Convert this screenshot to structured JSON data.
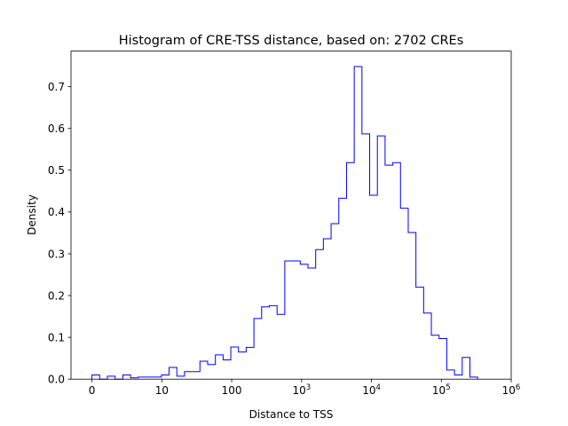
{
  "chart_data": {
    "type": "histogram-step",
    "title": "Histogram of CRE-TSS distance, based on: 2702 CREs",
    "xlabel": "Distance to TSS",
    "ylabel": "Density",
    "xscale": "symlog",
    "linthresh": 10,
    "xlim": [
      -3,
      1000000
    ],
    "ylim": [
      0,
      0.785
    ],
    "grid": false,
    "line_color": "#0000ff",
    "x_ticks": [
      {
        "value": 0,
        "base": "0",
        "exp": ""
      },
      {
        "value": 10,
        "base": "10",
        "exp": ""
      },
      {
        "value": 100,
        "base": "100",
        "exp": ""
      },
      {
        "value": 1000,
        "base": "10",
        "exp": "3"
      },
      {
        "value": 10000,
        "base": "10",
        "exp": "4"
      },
      {
        "value": 100000,
        "base": "10",
        "exp": "5"
      },
      {
        "value": 1000000,
        "base": "10",
        "exp": "6"
      }
    ],
    "y_ticks": [
      {
        "value": 0,
        "label": "0.0"
      },
      {
        "value": 0.1,
        "label": "0.1"
      },
      {
        "value": 0.2,
        "label": "0.2"
      },
      {
        "value": 0.3,
        "label": "0.3"
      },
      {
        "value": 0.4,
        "label": "0.4"
      },
      {
        "value": 0.5,
        "label": "0.5"
      },
      {
        "value": 0.6,
        "label": "0.6"
      },
      {
        "value": 0.7,
        "label": "0.7"
      }
    ],
    "bin_edges": [
      0,
      1.1,
      2.21,
      3.31,
      4.42,
      5.52,
      6.62,
      7.73,
      8.83,
      9.94,
      12.7,
      16.4,
      21.1,
      27.2,
      35.1,
      45.3,
      58.4,
      75.3,
      97.1,
      125,
      161,
      208,
      268,
      346,
      446,
      575,
      742,
      957,
      1234,
      1591,
      2051,
      2645,
      3411,
      4398,
      5671,
      7311,
      9427,
      12155,
      15672,
      20208,
      26055,
      33595,
      43316,
      55851,
      72013,
      92852,
      119720,
      154363,
      199032,
      256627,
      330890
    ],
    "density": [
      0.01,
      0.0,
      0.007,
      0.0,
      0.01,
      0.003,
      0.005,
      0.005,
      0.005,
      0.01,
      0.028,
      0.007,
      0.018,
      0.018,
      0.043,
      0.035,
      0.058,
      0.046,
      0.077,
      0.065,
      0.076,
      0.145,
      0.173,
      0.176,
      0.155,
      0.283,
      0.283,
      0.275,
      0.266,
      0.31,
      0.336,
      0.372,
      0.433,
      0.518,
      0.748,
      0.587,
      0.44,
      0.582,
      0.512,
      0.518,
      0.409,
      0.351,
      0.22,
      0.158,
      0.105,
      0.097,
      0.022,
      0.01,
      0.052,
      0.005
    ]
  }
}
